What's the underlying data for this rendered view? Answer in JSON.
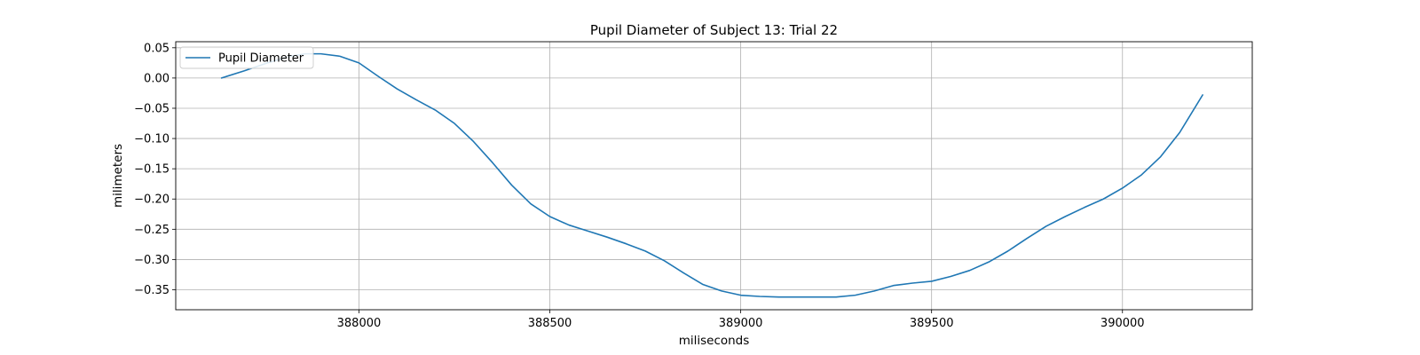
{
  "chart_data": {
    "type": "line",
    "title": "Pupil Diameter of Subject 13: Trial 22",
    "xlabel": "miliseconds",
    "ylabel": "milimeters",
    "xlim": [
      387520,
      390340
    ],
    "ylim": [
      -0.383,
      0.06
    ],
    "xticks": [
      388000,
      388500,
      389000,
      389500,
      390000
    ],
    "yticks": [
      0.05,
      0.0,
      -0.05,
      -0.1,
      -0.15,
      -0.2,
      -0.25,
      -0.3,
      -0.35
    ],
    "xtick_labels": [
      "388000",
      "388500",
      "389000",
      "389500",
      "390000"
    ],
    "ytick_labels": [
      "0.05",
      "0.00",
      "−0.05",
      "−0.10",
      "−0.15",
      "−0.20",
      "−0.25",
      "−0.30",
      "−0.35"
    ],
    "grid": true,
    "legend_position": "top-left",
    "series": [
      {
        "name": "Pupil Diameter",
        "color": "#1f77b4",
        "x": [
          387640,
          387700,
          387760,
          387820,
          387860,
          387900,
          387950,
          388000,
          388050,
          388100,
          388150,
          388200,
          388250,
          388300,
          388350,
          388400,
          388450,
          388500,
          388550,
          388600,
          388650,
          388700,
          388750,
          388800,
          388850,
          388900,
          388950,
          389000,
          389050,
          389100,
          389150,
          389200,
          389250,
          389300,
          389350,
          389400,
          389450,
          389500,
          389550,
          389600,
          389650,
          389700,
          389750,
          389800,
          389850,
          389900,
          389950,
          390000,
          390050,
          390100,
          390150,
          390210
        ],
        "y": [
          0.0,
          0.012,
          0.025,
          0.036,
          0.04,
          0.04,
          0.036,
          0.025,
          0.003,
          -0.018,
          -0.036,
          -0.053,
          -0.075,
          -0.105,
          -0.14,
          -0.177,
          -0.208,
          -0.229,
          -0.243,
          -0.253,
          -0.263,
          -0.274,
          -0.286,
          -0.302,
          -0.322,
          -0.341,
          -0.352,
          -0.359,
          -0.361,
          -0.362,
          -0.362,
          -0.362,
          -0.362,
          -0.359,
          -0.352,
          -0.343,
          -0.339,
          -0.336,
          -0.328,
          -0.318,
          -0.304,
          -0.286,
          -0.265,
          -0.245,
          -0.229,
          -0.214,
          -0.2,
          -0.182,
          -0.16,
          -0.13,
          -0.09,
          -0.028
        ]
      }
    ]
  }
}
